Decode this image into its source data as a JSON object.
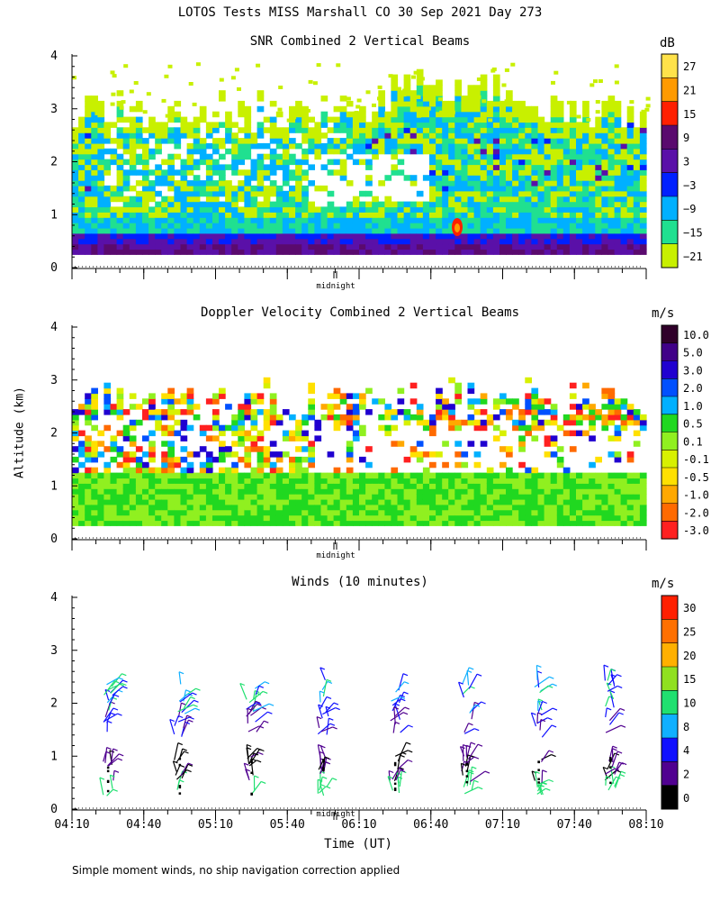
{
  "page": {
    "title": "LOTOS Tests MISS Marshall CO  30 Sep 2021 Day 273",
    "y_axis_label": "Altitude (km)",
    "x_axis_label": "Time (UT)",
    "footnote": "Simple moment winds, no ship navigation correction applied",
    "midnight_label": "midnight"
  },
  "chart_data": [
    {
      "type": "heatmap",
      "title": "SNR Combined 2 Vertical Beams",
      "ylim": [
        0,
        4
      ],
      "yticks": [
        "0",
        "1",
        "2",
        "3",
        "4"
      ],
      "colorbar": {
        "unit": "dB",
        "labels": [
          "27",
          "21",
          "15",
          "9",
          "3",
          "−3",
          "−9",
          "−15",
          "−21"
        ],
        "colors": [
          "#ffe24a",
          "#ff9a00",
          "#ff2000",
          "#5a0a6e",
          "#5a10a8",
          "#0020ff",
          "#00b0ff",
          "#20e090",
          "#c8f000"
        ]
      }
    },
    {
      "type": "heatmap",
      "title": "Doppler Velocity Combined 2 Vertical Beams",
      "ylim": [
        0,
        4
      ],
      "yticks": [
        "0",
        "1",
        "2",
        "3",
        "4"
      ],
      "colorbar": {
        "unit": "m/s",
        "labels": [
          "10.0",
          "5.0",
          "3.0",
          "2.0",
          "1.0",
          "0.5",
          "0.1",
          "-0.1",
          "-0.5",
          "-1.0",
          "-2.0",
          "-3.0"
        ],
        "colors": [
          "#30002a",
          "#400088",
          "#2000d0",
          "#0050ff",
          "#00b0ff",
          "#20d820",
          "#90f020",
          "#d8f000",
          "#ffe000",
          "#ffa800",
          "#ff6a00",
          "#ff2020"
        ]
      }
    },
    {
      "type": "scatter",
      "title": "Winds (10 minutes)",
      "ylim": [
        0,
        4
      ],
      "yticks": [
        "0",
        "1",
        "2",
        "3",
        "4"
      ],
      "x_tick_labels": [
        "04:10",
        "04:40",
        "05:10",
        "05:40",
        "06:10",
        "06:40",
        "07:10",
        "07:40",
        "08:10"
      ],
      "xlim": [
        "04:10",
        "08:10"
      ],
      "wind_profile_times": [
        "04:25",
        "04:55",
        "05:25",
        "05:55",
        "06:25",
        "06:55",
        "07:25",
        "07:55"
      ],
      "colorbar": {
        "unit": "m/s",
        "labels": [
          "30",
          "25",
          "20",
          "15",
          "10",
          "8",
          "4",
          "2",
          "0"
        ],
        "colors": [
          "#ff2000",
          "#ff7000",
          "#ffb000",
          "#90e020",
          "#20e070",
          "#10b0ff",
          "#1010ff",
          "#500090",
          "#000000"
        ]
      }
    }
  ]
}
